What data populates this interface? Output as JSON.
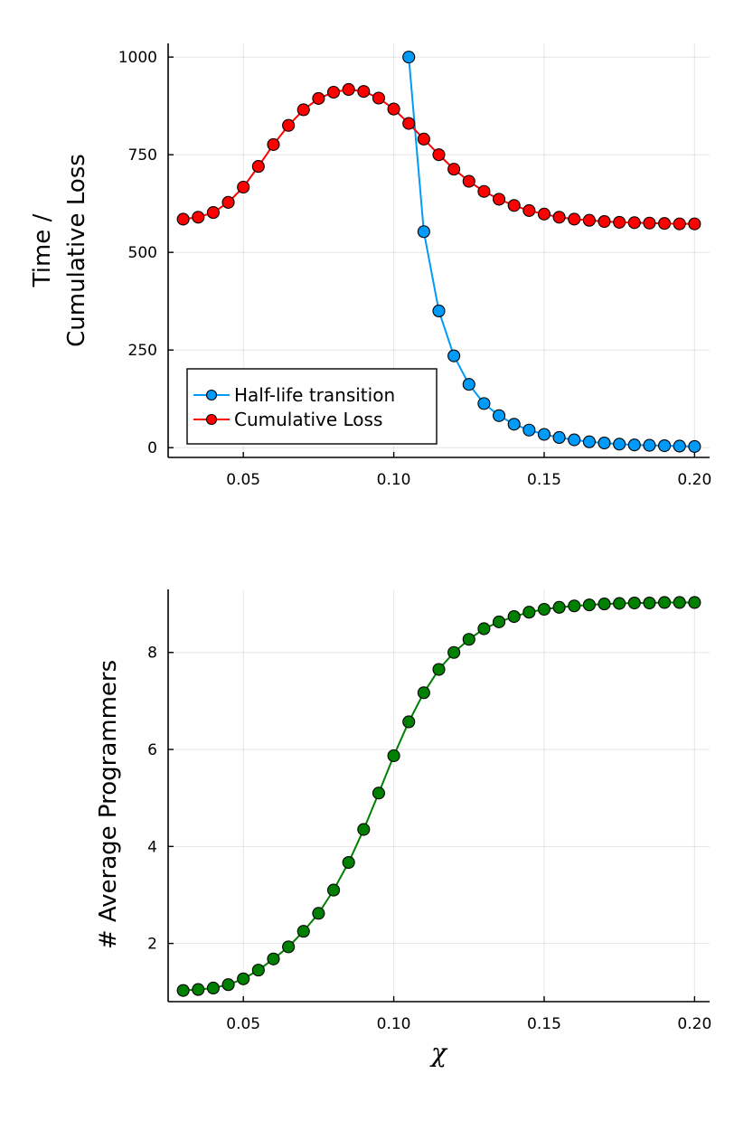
{
  "chart_data": [
    {
      "type": "line",
      "ylabel_line1": "Time /",
      "ylabel_line2": "Cumulative Loss",
      "xlabel": "",
      "xlim": [
        0.025,
        0.205
      ],
      "ylim": [
        -25,
        1035
      ],
      "xticks": [
        "0.05",
        "0.10",
        "0.15",
        "0.20"
      ],
      "xtick_values": [
        0.05,
        0.1,
        0.15,
        0.2
      ],
      "yticks": [
        "0",
        "250",
        "500",
        "750",
        "1000"
      ],
      "ytick_values": [
        0,
        250,
        500,
        750,
        1000
      ],
      "grid": true,
      "legend_position": "bottom-left",
      "series": [
        {
          "name": "Half-life transition",
          "color": "#009af9",
          "x": [
            0.105,
            0.11,
            0.115,
            0.12,
            0.125,
            0.13,
            0.135,
            0.14,
            0.145,
            0.15,
            0.155,
            0.16,
            0.165,
            0.17,
            0.175,
            0.18,
            0.185,
            0.19,
            0.195,
            0.2
          ],
          "y": [
            1000,
            553,
            350,
            235,
            162,
            113,
            82,
            60,
            45,
            34,
            26,
            20,
            15,
            12,
            9,
            7,
            6,
            5,
            4,
            3
          ]
        },
        {
          "name": "Cumulative Loss",
          "color": "#ff0000",
          "x": [
            0.03,
            0.035,
            0.04,
            0.045,
            0.05,
            0.055,
            0.06,
            0.065,
            0.07,
            0.075,
            0.08,
            0.085,
            0.09,
            0.095,
            0.1,
            0.105,
            0.11,
            0.115,
            0.12,
            0.125,
            0.13,
            0.135,
            0.14,
            0.145,
            0.15,
            0.155,
            0.16,
            0.165,
            0.17,
            0.175,
            0.18,
            0.185,
            0.19,
            0.195,
            0.2
          ],
          "y": [
            585,
            590,
            602,
            628,
            667,
            720,
            776,
            825,
            865,
            894,
            910,
            917,
            912,
            895,
            867,
            830,
            790,
            750,
            713,
            682,
            656,
            636,
            620,
            607,
            598,
            590,
            585,
            582,
            579,
            577,
            576,
            575,
            574,
            573,
            573
          ]
        }
      ]
    },
    {
      "type": "line",
      "ylabel": "# Average Programmers",
      "xlabel": "χ",
      "xlim": [
        0.025,
        0.205
      ],
      "ylim": [
        0.8,
        9.3
      ],
      "xticks": [
        "0.05",
        "0.10",
        "0.15",
        "0.20"
      ],
      "xtick_values": [
        0.05,
        0.1,
        0.15,
        0.2
      ],
      "yticks": [
        "2",
        "4",
        "6",
        "8"
      ],
      "ytick_values": [
        2,
        4,
        6,
        8
      ],
      "grid": true,
      "series": [
        {
          "name": "",
          "color": "#008000",
          "x": [
            0.03,
            0.035,
            0.04,
            0.045,
            0.05,
            0.055,
            0.06,
            0.065,
            0.07,
            0.075,
            0.08,
            0.085,
            0.09,
            0.095,
            0.1,
            0.105,
            0.11,
            0.115,
            0.12,
            0.125,
            0.13,
            0.135,
            0.14,
            0.145,
            0.15,
            0.155,
            0.16,
            0.165,
            0.17,
            0.175,
            0.18,
            0.185,
            0.19,
            0.195,
            0.2
          ],
          "y": [
            1.03,
            1.05,
            1.08,
            1.15,
            1.27,
            1.45,
            1.68,
            1.93,
            2.25,
            2.62,
            3.1,
            3.67,
            4.35,
            5.1,
            5.87,
            6.57,
            7.17,
            7.65,
            8.0,
            8.27,
            8.49,
            8.63,
            8.74,
            8.83,
            8.89,
            8.93,
            8.96,
            8.98,
            9.0,
            9.01,
            9.02,
            9.02,
            9.03,
            9.03,
            9.03
          ]
        }
      ]
    }
  ]
}
